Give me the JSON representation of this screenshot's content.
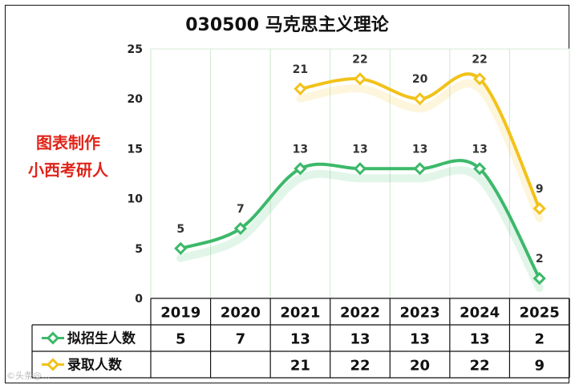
{
  "chart_data": {
    "type": "line",
    "title": "030500 马克思主义理论",
    "watermark_lines": [
      "图表制作",
      "小西考研人"
    ],
    "categories": [
      "2019",
      "2020",
      "2021",
      "2022",
      "2023",
      "2024",
      "2025"
    ],
    "ylim": [
      0,
      25
    ],
    "yticks": [
      0,
      5,
      10,
      15,
      20,
      25
    ],
    "grid": "vertical",
    "legend": "data-table-left",
    "series": [
      {
        "name": "拟招生人数",
        "color": "#3cb96a",
        "values": [
          5,
          7,
          13,
          13,
          13,
          13,
          2
        ]
      },
      {
        "name": "录取人数",
        "color": "#f2c21a",
        "values": [
          null,
          null,
          21,
          22,
          20,
          22,
          9
        ]
      }
    ]
  },
  "footer_credit": "©头条@..."
}
